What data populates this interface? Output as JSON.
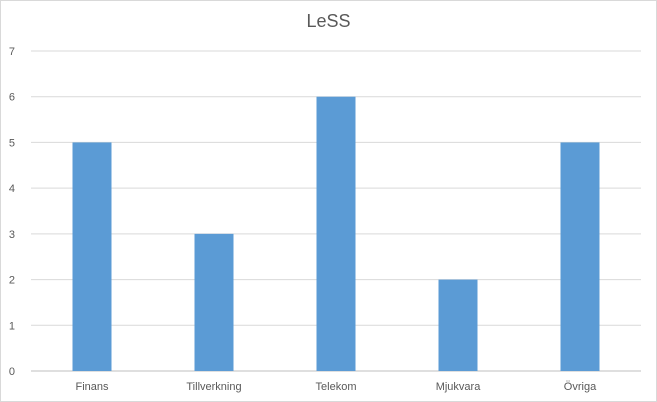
{
  "chart_data": {
    "type": "bar",
    "title": "LeSS",
    "categories": [
      "Finans",
      "Tillverkning",
      "Telekom",
      "Mjukvara",
      "Övriga"
    ],
    "values": [
      5,
      3,
      6,
      2,
      5
    ],
    "ylim": [
      0,
      7
    ],
    "yticks": [
      0,
      1,
      2,
      3,
      4,
      5,
      6,
      7
    ],
    "grid": true,
    "legend": "none",
    "bar_color": "#5b9bd5"
  }
}
